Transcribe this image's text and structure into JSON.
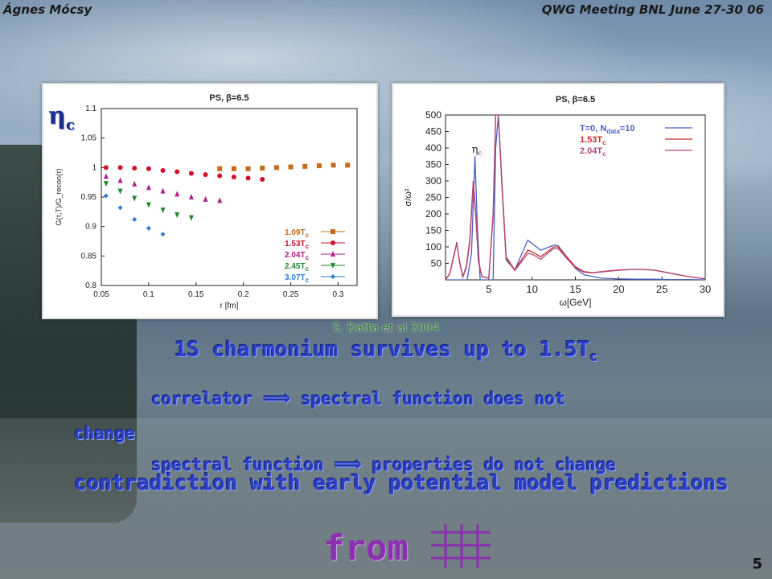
{
  "header": {
    "author": "Ágnes Mócsy",
    "event": "QWG Meeting BNL June 27-30 06"
  },
  "panel_label": "η",
  "panel_label_sub": "c",
  "citation": "S. Datta et al 2004",
  "headline": {
    "text": "1S charmonium survives up to 1.5T",
    "sub": "c"
  },
  "bullet1": {
    "lhs": "correlator",
    "arrow": "⟹",
    "rhs": "spectral function does not"
  },
  "bullet1_wrap": "change",
  "bullet2": {
    "lhs": "spectral function",
    "arrow": "⟹",
    "rhs": "properties do not change"
  },
  "contradiction": "contradiction with early potential model predictions",
  "from_text": "from",
  "page_number": "5",
  "colors": {
    "c109": "#c46a1a",
    "c153": "#d0102a",
    "c204": "#b0208a",
    "c245": "#1f8a2a",
    "c307": "#2a7fd0",
    "t0": "#4a5fc0",
    "s153": "#c83030",
    "s204": "#b04a80"
  },
  "chart_data": [
    {
      "type": "scatter",
      "title": "PS, β=6.5",
      "xlabel": "r [fm]",
      "ylabel": "G(τ,T)/G_recon(τ)",
      "xlim": [
        0.05,
        0.32
      ],
      "ylim": [
        0.8,
        1.1
      ],
      "x_ticks": [
        "0.05",
        "0.1",
        "0.15",
        "0.2",
        "0.25",
        "0.3"
      ],
      "y_ticks": [
        "0.8",
        "0.85",
        "0.9",
        "0.95",
        "1",
        "1.05",
        "1.1"
      ],
      "legend_position": "bottom-right",
      "series": [
        {
          "name": "1.09T",
          "sub": "c",
          "color": "#c46a1a",
          "marker": "square",
          "x": [
            0.175,
            0.19,
            0.205,
            0.22,
            0.235,
            0.25,
            0.265,
            0.28,
            0.295,
            0.31
          ],
          "y": [
            0.998,
            0.998,
            0.998,
            0.999,
            1.0,
            1.001,
            1.002,
            1.003,
            1.004,
            1.004
          ]
        },
        {
          "name": "1.53T",
          "sub": "c",
          "color": "#d0102a",
          "marker": "circle",
          "x": [
            0.055,
            0.07,
            0.085,
            0.1,
            0.115,
            0.13,
            0.145,
            0.16,
            0.175,
            0.19,
            0.205,
            0.22
          ],
          "y": [
            1.0,
            1.0,
            0.999,
            0.998,
            0.995,
            0.993,
            0.99,
            0.988,
            0.986,
            0.984,
            0.982,
            0.98
          ]
        },
        {
          "name": "2.04T",
          "sub": "c",
          "color": "#b0208a",
          "marker": "triangle",
          "x": [
            0.055,
            0.07,
            0.085,
            0.1,
            0.115,
            0.13,
            0.145,
            0.16,
            0.175
          ],
          "y": [
            0.985,
            0.978,
            0.972,
            0.966,
            0.96,
            0.955,
            0.95,
            0.946,
            0.944
          ]
        },
        {
          "name": "2.45T",
          "sub": "c",
          "color": "#1f8a2a",
          "marker": "triangle-down",
          "x": [
            0.055,
            0.07,
            0.085,
            0.1,
            0.115,
            0.13,
            0.145
          ],
          "y": [
            0.973,
            0.96,
            0.948,
            0.937,
            0.928,
            0.92,
            0.915
          ]
        },
        {
          "name": "3.07T",
          "sub": "c",
          "color": "#2a7fd0",
          "marker": "diamond",
          "x": [
            0.055,
            0.07,
            0.085,
            0.1,
            0.115
          ],
          "y": [
            0.952,
            0.932,
            0.912,
            0.897,
            0.887
          ]
        }
      ]
    },
    {
      "type": "line",
      "title": "PS, β=6.5",
      "xlabel": "ω[GeV]",
      "ylabel": "σ/ω²",
      "xlim": [
        0,
        30
      ],
      "ylim": [
        0,
        500
      ],
      "x_ticks": [
        "5",
        "10",
        "15",
        "20",
        "25",
        "30"
      ],
      "y_ticks": [
        "50",
        "100",
        "150",
        "200",
        "250",
        "300",
        "350",
        "400",
        "450",
        "500"
      ],
      "annotation": {
        "text": "η",
        "sub": "c",
        "x": 3.6,
        "y": 385
      },
      "legend_position": "top-right",
      "series": [
        {
          "name": "T=0, N",
          "sub": "data",
          "tail": "=10",
          "color": "#4a5fc0",
          "x": [
            0,
            1,
            2,
            2.5,
            3,
            3.4,
            3.7,
            4,
            4.5,
            5,
            5.5,
            5.8,
            6.1,
            6.5,
            7,
            8,
            9,
            9.5,
            10,
            11,
            12,
            12.5,
            13,
            14,
            15,
            16,
            18,
            20,
            22,
            24,
            26,
            28,
            30
          ],
          "y": [
            0,
            0,
            0,
            0,
            80,
            375,
            150,
            0,
            0,
            0,
            0,
            400,
            500,
            300,
            60,
            30,
            90,
            120,
            110,
            90,
            100,
            105,
            104,
            70,
            35,
            15,
            5,
            3,
            2,
            2,
            1,
            1,
            0
          ]
        },
        {
          "name": "1.53T",
          "sub": "c",
          "color": "#c83030",
          "x": [
            0,
            0.5,
            1,
            1.3,
            1.6,
            2,
            2.4,
            2.8,
            3.2,
            3.5,
            3.8,
            4.2,
            5,
            5.5,
            5.8,
            6.1,
            6.5,
            7,
            8,
            9,
            9.5,
            10,
            11,
            12,
            12.5,
            13,
            14,
            15,
            16,
            17,
            18,
            20,
            22,
            24,
            26,
            28,
            30
          ],
          "y": [
            0,
            20,
            80,
            110,
            60,
            10,
            40,
            120,
            300,
            200,
            60,
            10,
            5,
            200,
            500,
            500,
            300,
            70,
            30,
            70,
            90,
            85,
            70,
            90,
            100,
            100,
            70,
            40,
            25,
            22,
            25,
            30,
            32,
            30,
            20,
            10,
            3
          ]
        },
        {
          "name": "2.04T",
          "sub": "c",
          "color": "#b04a80",
          "x": [
            0,
            0.5,
            1,
            1.3,
            1.6,
            2,
            2.4,
            2.8,
            3.2,
            3.5,
            3.8,
            4.2,
            5,
            5.5,
            5.8,
            6.1,
            6.5,
            7,
            8,
            9,
            9.5,
            10,
            11,
            12,
            12.5,
            13,
            14,
            15,
            16,
            17,
            18,
            20,
            22,
            24,
            26,
            28,
            30
          ],
          "y": [
            0,
            18,
            75,
            115,
            55,
            8,
            35,
            110,
            295,
            190,
            55,
            10,
            5,
            190,
            500,
            500,
            290,
            65,
            28,
            62,
            80,
            78,
            62,
            85,
            95,
            95,
            65,
            37,
            23,
            21,
            24,
            29,
            32,
            30,
            20,
            10,
            3
          ]
        }
      ]
    }
  ]
}
